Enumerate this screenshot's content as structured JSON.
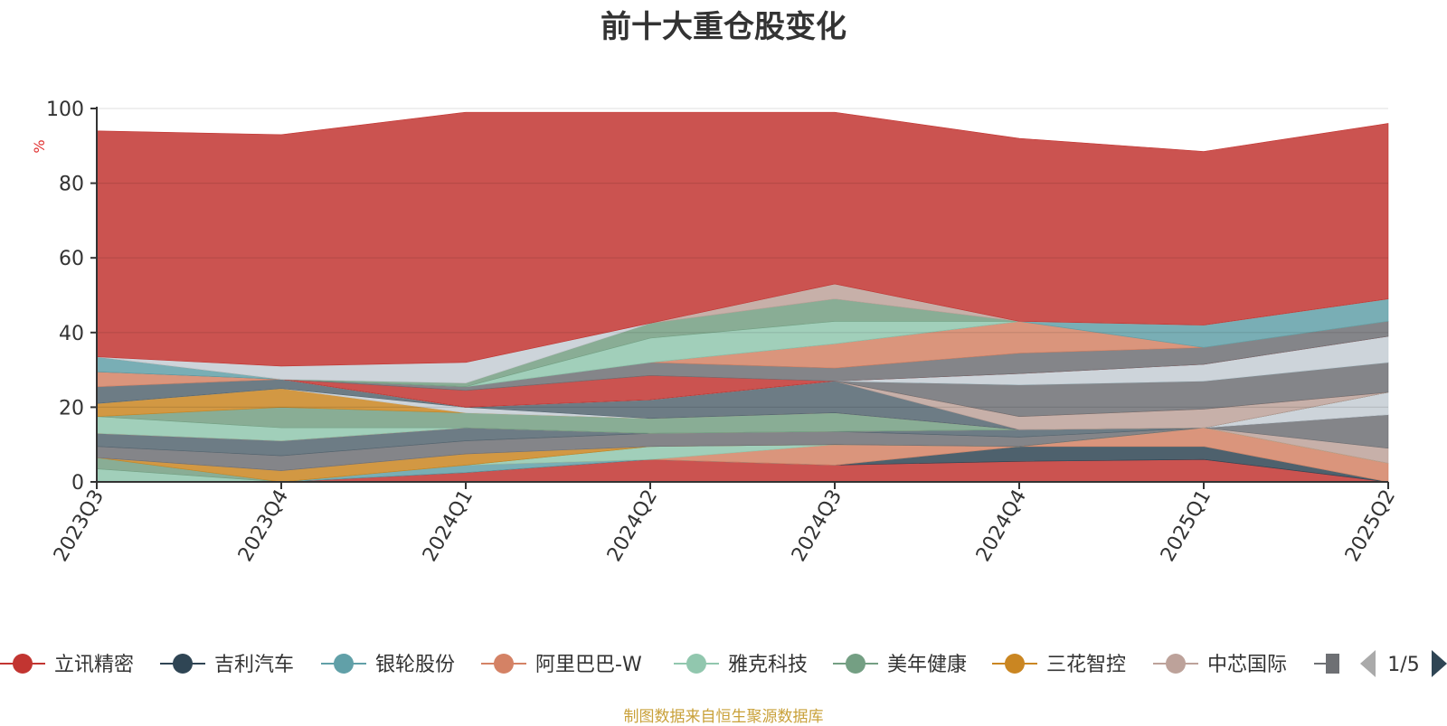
{
  "chart_data": {
    "type": "area",
    "stacked": true,
    "title": "前十大重仓股变化",
    "ylabel": "%",
    "xlabel": "",
    "categories": [
      "2023Q3",
      "2023Q4",
      "2024Q1",
      "2024Q2",
      "2024Q3",
      "2024Q4",
      "2025Q1",
      "2025Q2"
    ],
    "ylim": [
      0,
      100
    ],
    "yticks": [
      0,
      20,
      40,
      60,
      80,
      100
    ],
    "grid": true,
    "legend_position": "bottom",
    "legend_page": "1/5",
    "series": [
      {
        "name": "立讯精密",
        "color": "#c23531",
        "values": [
          0,
          0,
          2.5,
          6,
          4.5,
          5.5,
          6,
          0
        ]
      },
      {
        "name": "吉利汽车",
        "color": "#2f4554",
        "values": [
          0,
          0,
          0,
          0,
          0,
          4,
          3.5,
          0
        ]
      },
      {
        "name": "银轮股份",
        "color": "#61a0a8",
        "values": [
          0,
          0,
          2,
          0,
          0,
          0,
          0,
          0
        ]
      },
      {
        "name": "阿里巴巴-W",
        "color": "#d48265",
        "values": [
          0,
          0,
          0,
          0,
          5.5,
          0,
          5,
          5
        ]
      },
      {
        "name": "雅克科技",
        "color": "#91c7ae",
        "values": [
          3.5,
          0,
          0,
          3.5,
          0,
          0,
          0,
          0
        ]
      },
      {
        "name": "美年健康",
        "color": "#749f83",
        "values": [
          3,
          0,
          0,
          0,
          0,
          0,
          0,
          0
        ]
      },
      {
        "name": "三花智控",
        "color": "#ca8622",
        "values": [
          0,
          3,
          3,
          0,
          0,
          0,
          0,
          0
        ]
      },
      {
        "name": "中芯国际",
        "color": "#bda29a",
        "values": [
          0,
          0,
          0,
          0,
          0,
          0,
          0,
          4
        ]
      },
      {
        "name": "",
        "color": "#6e7074",
        "values": [
          3,
          4,
          3.5,
          3.5,
          3.5,
          2.5,
          0,
          9
        ]
      },
      {
        "name": "",
        "color": "#546570",
        "values": [
          3.5,
          4,
          3.5,
          0,
          0,
          2,
          0,
          0
        ]
      },
      {
        "name": "",
        "color": "#c4ccd3",
        "values": [
          0,
          0,
          0,
          0,
          0,
          0,
          0,
          6
        ]
      },
      {
        "name": "",
        "color": "#c23531",
        "values": [
          0,
          0,
          0,
          0,
          0,
          0,
          0,
          0
        ]
      },
      {
        "name": "",
        "color": "#91c7ae",
        "values": [
          4.5,
          3.5,
          0,
          0,
          0,
          0,
          0,
          0
        ]
      },
      {
        "name": "",
        "color": "#749f83",
        "values": [
          0,
          5.5,
          4,
          4,
          5,
          0,
          0,
          0
        ]
      },
      {
        "name": "",
        "color": "#ca8622",
        "values": [
          3.5,
          5,
          0,
          0,
          0,
          0,
          0,
          0
        ]
      },
      {
        "name": "",
        "color": "#c4ccd3",
        "values": [
          0,
          0,
          1.5,
          0,
          0,
          0,
          0,
          0
        ]
      },
      {
        "name": "",
        "color": "#546570",
        "values": [
          4.5,
          2.5,
          0,
          5,
          8.5,
          0,
          0,
          0
        ]
      },
      {
        "name": "",
        "color": "#bda29a",
        "values": [
          0,
          0,
          0,
          0,
          0,
          3.5,
          5,
          0
        ]
      },
      {
        "name": "",
        "color": "#d48265",
        "values": [
          4,
          0,
          0,
          0,
          0,
          0,
          0,
          0
        ]
      },
      {
        "name": "",
        "color": "#6e7074",
        "values": [
          0,
          0,
          0,
          0,
          0,
          8.5,
          7.5,
          8
        ]
      },
      {
        "name": "",
        "color": "#61a0a8",
        "values": [
          4,
          0,
          0,
          0,
          0,
          0,
          0,
          0
        ]
      },
      {
        "name": "",
        "color": "#c4ccd3",
        "values": [
          0,
          0,
          0,
          0,
          0,
          3,
          4.5,
          7
        ]
      },
      {
        "name": "",
        "color": "#c23531",
        "values": [
          0,
          0,
          4.5,
          6.5,
          0,
          0,
          0,
          0
        ]
      },
      {
        "name": "",
        "color": "#6e7074",
        "values": [
          0,
          0,
          1,
          3.5,
          3.5,
          5.5,
          4.5,
          4
        ]
      },
      {
        "name": "",
        "color": "#d48265",
        "values": [
          0,
          0,
          0,
          0,
          6.5,
          8.5,
          0,
          0
        ]
      },
      {
        "name": "",
        "color": "#61a0a8",
        "values": [
          0,
          0,
          0,
          0,
          0,
          0,
          6,
          6
        ]
      },
      {
        "name": "",
        "color": "#91c7ae",
        "values": [
          0,
          0,
          0,
          6.5,
          6,
          0,
          0,
          0
        ]
      },
      {
        "name": "",
        "color": "#749f83",
        "values": [
          0,
          0,
          1,
          4,
          6,
          0,
          0,
          0
        ]
      },
      {
        "name": "",
        "color": "#bda29a",
        "values": [
          0,
          0,
          0,
          0,
          4,
          0,
          0,
          0
        ]
      },
      {
        "name": "",
        "color": "#c4ccd3",
        "values": [
          0,
          3.5,
          5.5,
          0,
          0,
          0,
          0,
          0
        ]
      },
      {
        "name": "",
        "color": "#c23531",
        "values": [
          60.5,
          62,
          67,
          56.5,
          46,
          49,
          46.5,
          47
        ]
      }
    ]
  },
  "legend": {
    "items": [
      {
        "name": "立讯精密",
        "color": "#c23531"
      },
      {
        "name": "吉利汽车",
        "color": "#2f4554"
      },
      {
        "name": "银轮股份",
        "color": "#61a0a8"
      },
      {
        "name": "阿里巴巴-W",
        "color": "#d48265"
      },
      {
        "name": "雅克科技",
        "color": "#91c7ae"
      },
      {
        "name": "美年健康",
        "color": "#749f83"
      },
      {
        "name": "三花智控",
        "color": "#ca8622"
      },
      {
        "name": "中芯国际",
        "color": "#bda29a"
      }
    ],
    "partial_item_color": "#6e7074",
    "page_indicator": "1/5",
    "prev_icon": "triangle-left-icon",
    "next_icon": "triangle-right-icon"
  },
  "footer": {
    "source": "制图数据来自恒生聚源数据库"
  }
}
